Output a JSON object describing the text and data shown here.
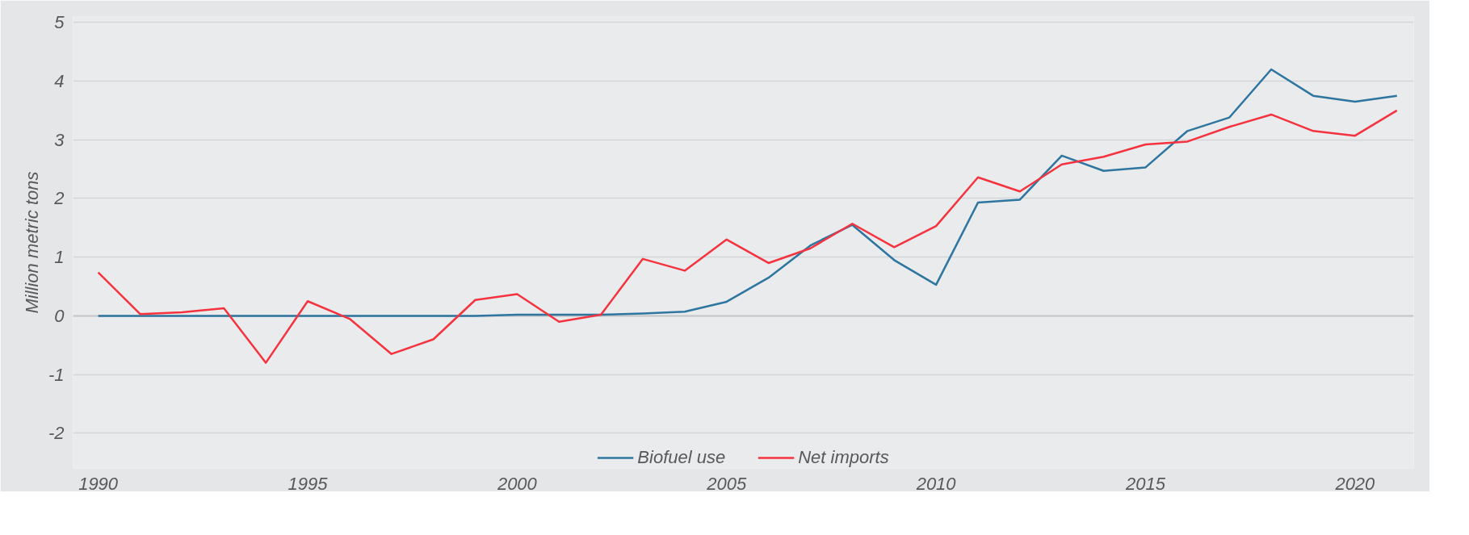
{
  "chart_data": {
    "type": "line",
    "ylabel": "Million metric tons",
    "x": [
      1990,
      1991,
      1992,
      1993,
      1994,
      1995,
      1996,
      1997,
      1998,
      1999,
      2000,
      2001,
      2002,
      2003,
      2004,
      2005,
      2006,
      2007,
      2008,
      2009,
      2010,
      2011,
      2012,
      2013,
      2014,
      2015,
      2016,
      2017,
      2018,
      2019,
      2020,
      2021
    ],
    "series": [
      {
        "name": "Biofuel use",
        "color": "#2e75a0",
        "values": [
          0,
          0,
          0,
          0,
          0,
          0,
          0,
          0,
          0,
          0,
          0.02,
          0.02,
          0.02,
          0.04,
          0.07,
          0.24,
          0.65,
          1.2,
          1.55,
          0.95,
          0.53,
          1.93,
          1.98,
          2.73,
          2.47,
          2.53,
          3.15,
          3.38,
          4.2,
          3.75,
          3.65,
          3.75
        ]
      },
      {
        "name": "Net imports",
        "color": "#f5333f",
        "values": [
          0.74,
          0.03,
          0.06,
          0.13,
          -0.8,
          0.25,
          -0.05,
          -0.65,
          -0.4,
          0.27,
          0.37,
          -0.1,
          0.02,
          0.97,
          0.77,
          1.3,
          0.9,
          1.15,
          1.57,
          1.17,
          1.53,
          2.36,
          2.12,
          2.58,
          2.71,
          2.92,
          2.97,
          3.22,
          3.43,
          3.15,
          3.07,
          3.5
        ]
      }
    ],
    "xlim": [
      1989.4,
      2021.4
    ],
    "ylim": [
      -2.6,
      5.1
    ],
    "xticks": [
      1990,
      1995,
      2000,
      2005,
      2010,
      2015,
      2020
    ],
    "yticks": [
      -2,
      -1,
      0,
      1,
      2,
      3,
      4,
      5
    ],
    "grid": "y",
    "legend": "bottom",
    "marker": "none",
    "line_style": "solid"
  }
}
